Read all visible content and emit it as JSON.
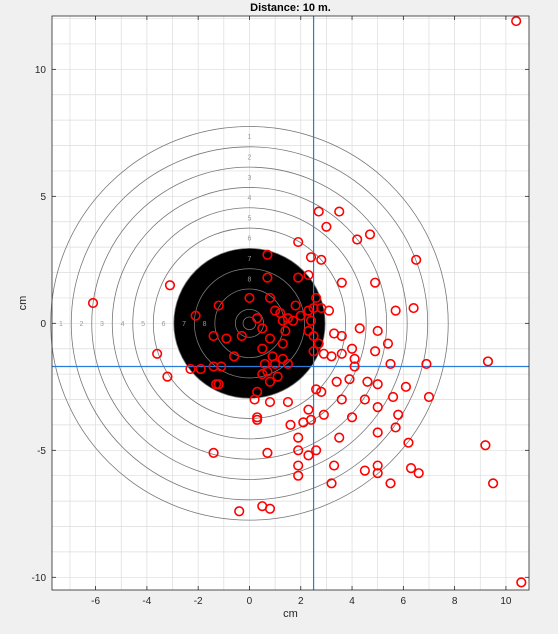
{
  "chart_data": {
    "type": "scatter",
    "title": "Distance: 10 m.",
    "xlabel": "cm",
    "ylabel": "cm",
    "xlim": [
      -7.7,
      10.9
    ],
    "ylim": [
      -10.5,
      12.1
    ],
    "xticks": [
      -6,
      -4,
      -2,
      0,
      2,
      4,
      6,
      8,
      10
    ],
    "yticks": [
      -10,
      -5,
      0,
      5,
      10
    ],
    "grid": true,
    "target": {
      "center": [
        0,
        0
      ],
      "ring_radii": [
        7.75,
        6.95,
        6.15,
        5.35,
        4.55,
        3.75,
        2.95,
        2.15,
        1.35,
        0.55,
        0.25
      ],
      "black_radius": 2.95,
      "ring_numbers": [
        "1",
        "2",
        "3",
        "4",
        "5",
        "6",
        "7",
        "8"
      ],
      "colors": {
        "black": "#000000",
        "ring": "#777777",
        "black_ring": "#777777"
      }
    },
    "mean_point": {
      "x": 2.5,
      "y": -1.7
    },
    "series": [
      {
        "marker": "circle",
        "color": "#ff0000",
        "points": [
          [
            10.4,
            11.9
          ],
          [
            10.6,
            -10.2
          ],
          [
            -6.1,
            0.8
          ],
          [
            -3.1,
            1.5
          ],
          [
            -3.6,
            -1.2
          ],
          [
            -3.2,
            -2.1
          ],
          [
            -2.1,
            0.3
          ],
          [
            -1.2,
            0.7
          ],
          [
            -1.4,
            -0.5
          ],
          [
            -0.9,
            -0.6
          ],
          [
            -0.6,
            -1.3
          ],
          [
            -0.3,
            -0.5
          ],
          [
            -2.3,
            -1.8
          ],
          [
            -1.9,
            -1.8
          ],
          [
            -1.4,
            -1.7
          ],
          [
            -1.1,
            -1.7
          ],
          [
            -1.3,
            -2.4
          ],
          [
            -1.2,
            -2.4
          ],
          [
            0.0,
            1.0
          ],
          [
            0.7,
            1.8
          ],
          [
            0.7,
            2.7
          ],
          [
            0.8,
            1.0
          ],
          [
            1.0,
            0.5
          ],
          [
            1.2,
            0.4
          ],
          [
            1.3,
            0.1
          ],
          [
            1.5,
            0.2
          ],
          [
            1.4,
            -0.3
          ],
          [
            1.3,
            -0.8
          ],
          [
            1.7,
            0.1
          ],
          [
            1.8,
            0.7
          ],
          [
            1.9,
            1.8
          ],
          [
            2.3,
            1.9
          ],
          [
            2.4,
            2.6
          ],
          [
            2.8,
            2.5
          ],
          [
            1.9,
            3.2
          ],
          [
            2.7,
            4.4
          ],
          [
            3.0,
            3.8
          ],
          [
            3.5,
            4.4
          ],
          [
            4.2,
            3.3
          ],
          [
            4.7,
            3.5
          ],
          [
            6.5,
            2.5
          ],
          [
            3.6,
            1.6
          ],
          [
            4.9,
            1.6
          ],
          [
            2.0,
            0.3
          ],
          [
            2.3,
            0.5
          ],
          [
            2.5,
            0.6
          ],
          [
            2.6,
            1.0
          ],
          [
            2.8,
            0.6
          ],
          [
            3.1,
            0.5
          ],
          [
            2.4,
            0.1
          ],
          [
            2.3,
            -0.3
          ],
          [
            2.5,
            -0.5
          ],
          [
            2.7,
            -0.8
          ],
          [
            3.3,
            -0.4
          ],
          [
            3.6,
            -0.5
          ],
          [
            4.3,
            -0.2
          ],
          [
            5.0,
            -0.3
          ],
          [
            5.7,
            0.5
          ],
          [
            6.4,
            0.6
          ],
          [
            5.4,
            -0.8
          ],
          [
            4.0,
            -1.0
          ],
          [
            4.1,
            -1.4
          ],
          [
            4.9,
            -1.1
          ],
          [
            5.5,
            -1.6
          ],
          [
            6.9,
            -1.6
          ],
          [
            3.2,
            -1.3
          ],
          [
            2.9,
            -1.2
          ],
          [
            2.5,
            -1.1
          ],
          [
            3.6,
            -1.2
          ],
          [
            4.1,
            -1.7
          ],
          [
            4.6,
            -2.3
          ],
          [
            5.0,
            -2.4
          ],
          [
            3.4,
            -2.3
          ],
          [
            3.9,
            -2.2
          ],
          [
            0.3,
            0.2
          ],
          [
            0.5,
            -0.2
          ],
          [
            0.8,
            -0.6
          ],
          [
            0.5,
            -1.0
          ],
          [
            0.9,
            -1.3
          ],
          [
            0.6,
            -1.6
          ],
          [
            1.0,
            -1.6
          ],
          [
            1.3,
            -1.4
          ],
          [
            1.5,
            -1.6
          ],
          [
            1.1,
            -2.1
          ],
          [
            0.7,
            -1.9
          ],
          [
            0.5,
            -2.0
          ],
          [
            0.8,
            -2.3
          ],
          [
            0.3,
            -2.7
          ],
          [
            0.2,
            -3.0
          ],
          [
            0.8,
            -3.1
          ],
          [
            1.5,
            -3.1
          ],
          [
            0.3,
            -3.7
          ],
          [
            2.3,
            -3.4
          ],
          [
            2.6,
            -2.6
          ],
          [
            2.8,
            -2.7
          ],
          [
            2.1,
            -3.9
          ],
          [
            2.4,
            -3.8
          ],
          [
            2.9,
            -3.6
          ],
          [
            3.6,
            -3.0
          ],
          [
            4.0,
            -3.7
          ],
          [
            4.5,
            -3.0
          ],
          [
            5.0,
            -3.3
          ],
          [
            5.6,
            -2.9
          ],
          [
            6.1,
            -2.5
          ],
          [
            7.0,
            -2.9
          ],
          [
            5.8,
            -3.6
          ],
          [
            5.7,
            -4.1
          ],
          [
            6.2,
            -4.7
          ],
          [
            5.0,
            -4.3
          ],
          [
            3.5,
            -4.5
          ],
          [
            1.6,
            -4.0
          ],
          [
            1.9,
            -4.5
          ],
          [
            1.9,
            -5.0
          ],
          [
            2.3,
            -5.2
          ],
          [
            2.6,
            -5.0
          ],
          [
            1.9,
            -5.6
          ],
          [
            1.9,
            -6.0
          ],
          [
            3.3,
            -5.6
          ],
          [
            3.2,
            -6.3
          ],
          [
            4.5,
            -5.8
          ],
          [
            5.0,
            -5.6
          ],
          [
            5.0,
            -5.9
          ],
          [
            5.5,
            -6.3
          ],
          [
            6.3,
            -5.7
          ],
          [
            6.6,
            -5.9
          ],
          [
            9.3,
            -1.5
          ],
          [
            9.2,
            -4.8
          ],
          [
            9.5,
            -6.3
          ],
          [
            -1.4,
            -5.1
          ],
          [
            0.7,
            -5.1
          ],
          [
            -0.4,
            -7.4
          ],
          [
            0.5,
            -7.2
          ],
          [
            0.8,
            -7.3
          ],
          [
            0.3,
            -3.8
          ]
        ]
      }
    ]
  }
}
